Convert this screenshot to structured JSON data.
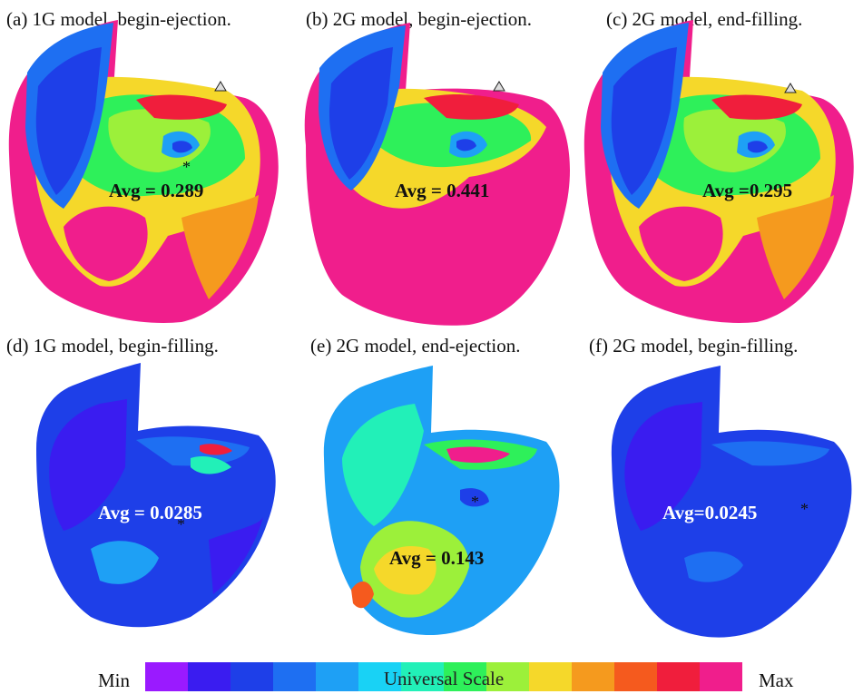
{
  "panels": [
    {
      "caption": "(a) 1G model, begin-ejection.",
      "avg": "Avg = 0.289"
    },
    {
      "caption": "(b) 2G model, begin-ejection.",
      "avg": "Avg = 0.441"
    },
    {
      "caption": "(c) 2G model, end-filling.",
      "avg": "Avg =0.295"
    },
    {
      "caption": "(d) 1G model, begin-filling.",
      "avg": "Avg = 0.0285"
    },
    {
      "caption": "(e) 2G model, end-ejection.",
      "avg": "Avg = 0.143"
    },
    {
      "caption": "(f) 2G model, begin-filling.",
      "avg": "Avg=0.0245"
    }
  ],
  "scale": {
    "min_label": "Min",
    "max_label": "Max",
    "title": "Universal Scale",
    "colors": [
      "#9a1aff",
      "#3a1cf0",
      "#1e3fe8",
      "#1e6ff2",
      "#1ea0f5",
      "#19d2f5",
      "#22f0b8",
      "#2ef05a",
      "#9cf03a",
      "#f5d82a",
      "#f59a1e",
      "#f55a1e",
      "#f01e3c",
      "#f01e8c"
    ]
  }
}
